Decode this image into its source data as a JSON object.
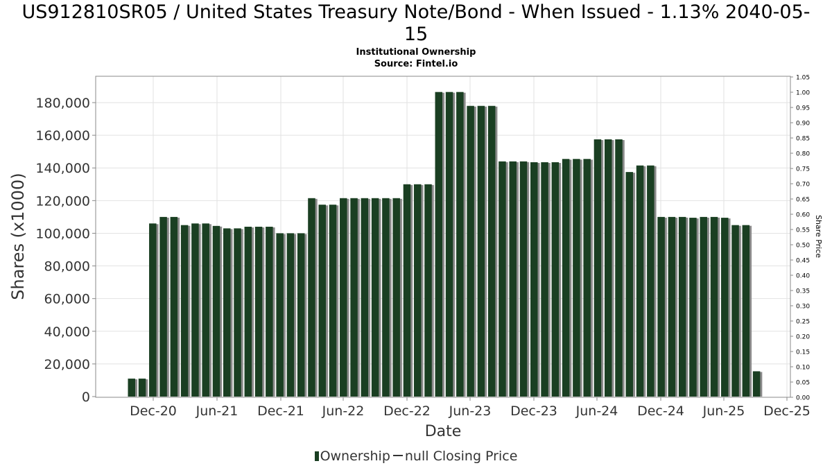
{
  "title": "US912810SR05 / United States Treasury Note/Bond - When Issued - 1.13% 2040-05-15",
  "title_line1": "US912810SR05 / United States Treasury Note/Bond - When Issued - 1.13% 2040-05-",
  "title_line2": "15",
  "subtitle": "Institutional Ownership",
  "source": "Source: Fintel.io",
  "legend": {
    "series1": "Ownership",
    "series2": "null Closing Price"
  },
  "colors": {
    "bar": "#1a3f22",
    "bar_shadow": "#8a8a8a",
    "grid": "#e2e2e2",
    "axis": "#888888"
  },
  "chart_data": {
    "type": "bar",
    "xlabel": "Date",
    "ylabel": "Shares (x1000)",
    "y2label": "Share Price",
    "ylim": [
      0,
      195000
    ],
    "y2lim": [
      0,
      1.05
    ],
    "grid": true,
    "legend_position": "bottom",
    "yticks": [
      "0",
      "20,000",
      "40,000",
      "60,000",
      "80,000",
      "100,000",
      "120,000",
      "140,000",
      "160,000",
      "180,000"
    ],
    "y2ticks": [
      "0.00",
      "0.05",
      "0.10",
      "0.15",
      "0.20",
      "0.25",
      "0.30",
      "0.35",
      "0.40",
      "0.45",
      "0.50",
      "0.55",
      "0.60",
      "0.65",
      "0.70",
      "0.75",
      "0.80",
      "0.85",
      "0.90",
      "0.95",
      "1.00",
      "1.05"
    ],
    "xticks": [
      "Dec-20",
      "Jun-21",
      "Dec-21",
      "Jun-22",
      "Dec-22",
      "Jun-23",
      "Dec-23",
      "Jun-24",
      "Dec-24",
      "Jun-25",
      "Dec-25"
    ],
    "series": [
      {
        "name": "Ownership",
        "values": [
          11000,
          11000,
          106000,
          110000,
          110000,
          105000,
          106000,
          106000,
          104500,
          103000,
          103000,
          104000,
          104000,
          104000,
          100000,
          100000,
          100000,
          121500,
          117500,
          117500,
          121500,
          121500,
          121500,
          121500,
          121500,
          121500,
          130000,
          130000,
          130000,
          186500,
          186500,
          186500,
          178000,
          178000,
          178000,
          144000,
          144000,
          144000,
          143500,
          143500,
          143500,
          145500,
          145500,
          145500,
          157500,
          157500,
          157500,
          137500,
          141500,
          141500,
          110000,
          110000,
          110000,
          109500,
          110000,
          110000,
          109500,
          105000,
          105000,
          15500
        ]
      }
    ]
  }
}
